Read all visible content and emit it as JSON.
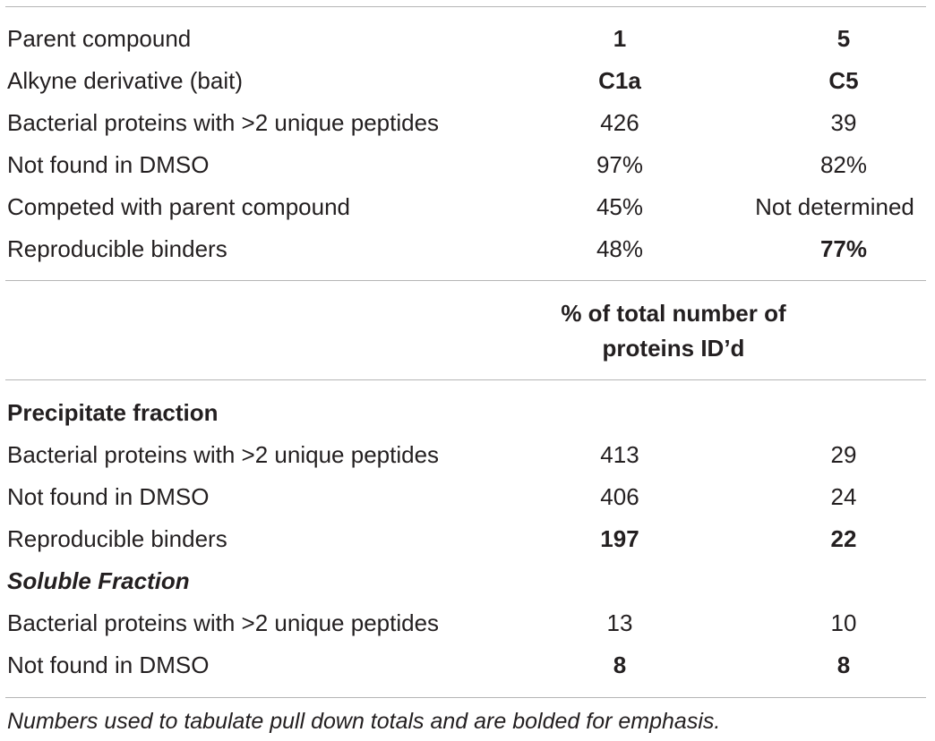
{
  "table": {
    "top_rows": [
      {
        "label": "Parent compound",
        "c1": "1",
        "c5": "5",
        "c1_bold": true,
        "c5_bold": true
      },
      {
        "label": "Alkyne derivative (bait)",
        "c1": "C1a",
        "c5": "C5",
        "c1_bold": true,
        "c5_bold": true
      },
      {
        "label": "Bacterial proteins with >2 unique peptides",
        "c1": "426",
        "c5": "39",
        "c1_bold": false,
        "c5_bold": false
      },
      {
        "label": "Not found in DMSO",
        "c1": "97%",
        "c5": "82%",
        "c1_bold": false,
        "c5_bold": false
      },
      {
        "label": "Competed with parent compound",
        "c1": "45%",
        "c5": "Not determined",
        "c1_bold": false,
        "c5_bold": false
      },
      {
        "label": "Reproducible binders",
        "c1": "48%",
        "c5": "77%",
        "c1_bold": false,
        "c5_bold": true
      }
    ],
    "subheader_line1": "% of total number of",
    "subheader_line2": "proteins ID’d",
    "precipitate": {
      "title": "Precipitate fraction",
      "rows": [
        {
          "label": "Bacterial proteins with >2 unique peptides",
          "c1": "413",
          "c5": "29",
          "c1_bold": false,
          "c5_bold": false
        },
        {
          "label": "Not found in DMSO",
          "c1": "406",
          "c5": "24",
          "c1_bold": false,
          "c5_bold": false
        },
        {
          "label": "Reproducible binders",
          "c1": "197",
          "c5": "22",
          "c1_bold": true,
          "c5_bold": true
        }
      ]
    },
    "soluble": {
      "title": "Soluble Fraction",
      "rows": [
        {
          "label": "Bacterial proteins with >2 unique peptides",
          "c1": "13",
          "c5": "10",
          "c1_bold": false,
          "c5_bold": false
        },
        {
          "label": "Not found in DMSO",
          "c1": "8",
          "c5": "8",
          "c1_bold": true,
          "c5_bold": true
        }
      ]
    }
  },
  "footnote": "Numbers used to tabulate pull down totals and are bolded for emphasis."
}
